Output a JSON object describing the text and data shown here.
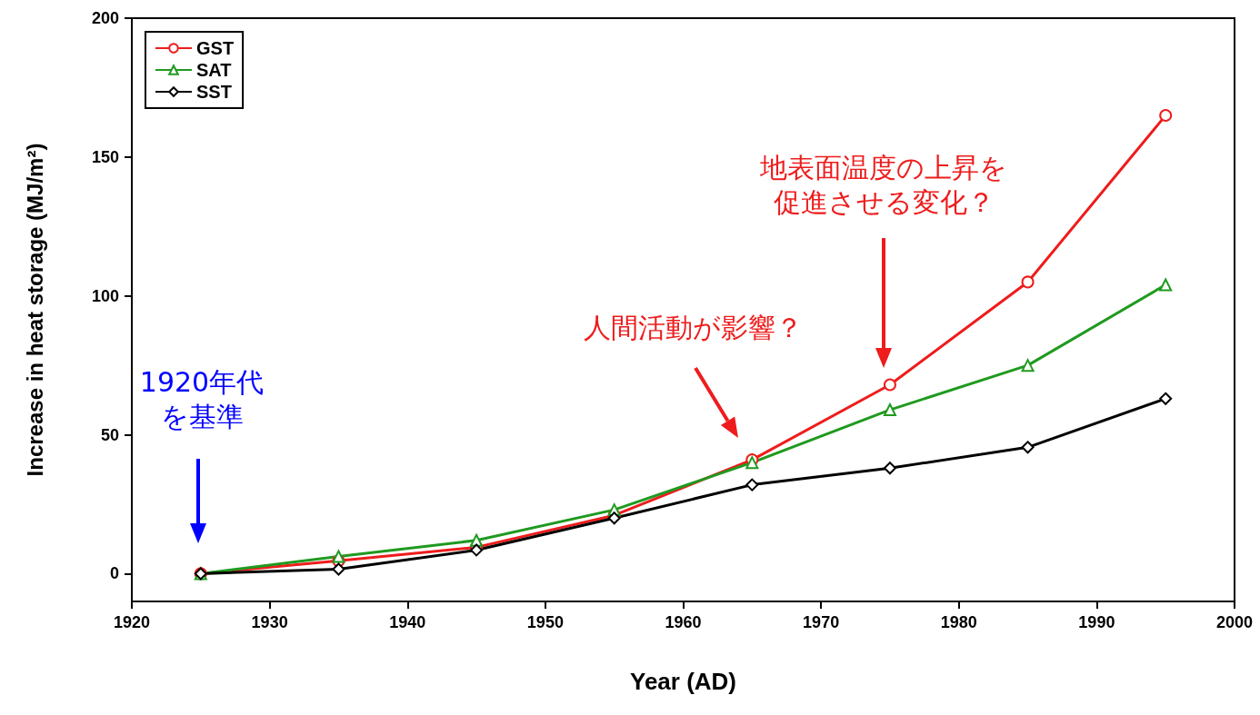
{
  "chart_data": {
    "type": "line",
    "xlabel": "Year (AD)",
    "ylabel": "Increase in heat storage (MJ/m²)",
    "x": [
      1925,
      1935,
      1945,
      1955,
      1965,
      1975,
      1985,
      1995
    ],
    "series": [
      {
        "name": "GST",
        "color": "#ee1c1c",
        "marker": "circle",
        "values": [
          0,
          4.6,
          9.5,
          21,
          41,
          68,
          105,
          165
        ]
      },
      {
        "name": "SAT",
        "color": "#1f9a1f",
        "marker": "triangle",
        "values": [
          0,
          6.2,
          12,
          23,
          40,
          59,
          75,
          104
        ]
      },
      {
        "name": "SST",
        "color": "#000000",
        "marker": "diamond",
        "values": [
          0,
          1.6,
          8.5,
          20,
          32,
          38,
          45.5,
          63
        ]
      }
    ],
    "xlim": [
      1920,
      2000
    ],
    "xticks": [
      1920,
      1930,
      1940,
      1950,
      1960,
      1970,
      1980,
      1990,
      2000
    ],
    "ylim": [
      -10,
      200
    ],
    "yticks": [
      0,
      50,
      100,
      150,
      200
    ],
    "grid": false,
    "legend": "top left",
    "line_style": "solid",
    "annotations": [
      "1920年代を基準",
      "人間活動が影響？",
      "地表面温度の上昇を促進させる変化？"
    ]
  }
}
